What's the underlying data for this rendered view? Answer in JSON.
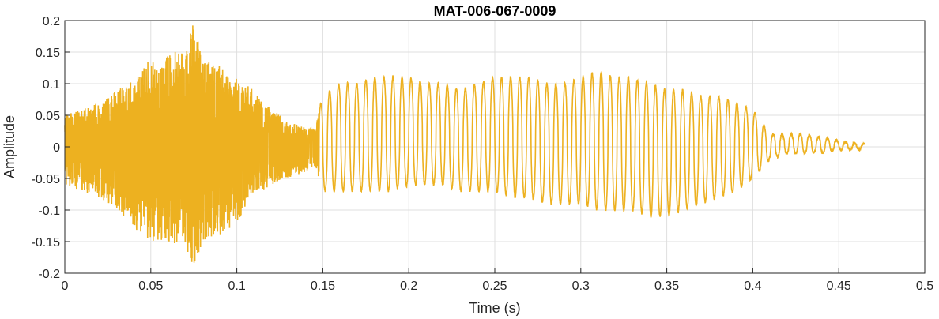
{
  "chart_data": {
    "type": "line",
    "title": "MAT-006-067-0009",
    "xlabel": "Time (s)",
    "ylabel": "Amplitude",
    "xlim": [
      0,
      0.5
    ],
    "ylim": [
      -0.2,
      0.2
    ],
    "grid": true,
    "line_color": "#edb120",
    "x_ticks": [
      "0",
      "0.05",
      "0.1",
      "0.15",
      "0.2",
      "0.25",
      "0.3",
      "0.35",
      "0.4",
      "0.45",
      "0.5"
    ],
    "y_ticks": [
      "0.2",
      "0.15",
      "0.1",
      "0.05",
      "0",
      "-0.05",
      "-0.1",
      "-0.15",
      "-0.2"
    ],
    "series": [
      {
        "x": [
          0,
          0.01,
          0.02,
          0.03,
          0.04,
          0.05,
          0.06,
          0.07,
          0.075,
          0.08,
          0.09,
          0.1,
          0.11,
          0.12,
          0.13,
          0.14,
          0.145,
          0.15,
          0.16,
          0.17,
          0.18,
          0.19,
          0.2,
          0.21,
          0.22,
          0.23,
          0.24,
          0.25,
          0.26,
          0.27,
          0.28,
          0.29,
          0.3,
          0.31,
          0.32,
          0.33,
          0.34,
          0.35,
          0.36,
          0.37,
          0.38,
          0.39,
          0.4,
          0.41,
          0.42,
          0.43,
          0.44,
          0.45,
          0.46,
          0.465
        ],
        "y_upper": [
          0.05,
          0.06,
          0.07,
          0.09,
          0.11,
          0.14,
          0.15,
          0.16,
          0.2,
          0.14,
          0.13,
          0.11,
          0.09,
          0.06,
          0.04,
          0.03,
          0.03,
          0.08,
          0.1,
          0.1,
          0.11,
          0.11,
          0.11,
          0.1,
          0.1,
          0.09,
          0.1,
          0.11,
          0.11,
          0.11,
          0.1,
          0.1,
          0.11,
          0.12,
          0.11,
          0.11,
          0.1,
          0.09,
          0.09,
          0.08,
          0.08,
          0.07,
          0.06,
          0.02,
          0.02,
          0.02,
          0.015,
          0.01,
          0.005,
          0.005
        ],
        "y_lower": [
          -0.06,
          -0.07,
          -0.08,
          -0.1,
          -0.13,
          -0.15,
          -0.15,
          -0.16,
          -0.19,
          -0.15,
          -0.14,
          -0.12,
          -0.08,
          -0.06,
          -0.05,
          -0.04,
          -0.03,
          -0.07,
          -0.07,
          -0.07,
          -0.07,
          -0.07,
          -0.06,
          -0.06,
          -0.06,
          -0.07,
          -0.07,
          -0.07,
          -0.08,
          -0.08,
          -0.09,
          -0.09,
          -0.09,
          -0.1,
          -0.1,
          -0.1,
          -0.11,
          -0.11,
          -0.1,
          -0.09,
          -0.08,
          -0.07,
          -0.05,
          -0.02,
          -0.01,
          -0.01,
          -0.01,
          -0.005,
          -0.005,
          -0.003
        ]
      }
    ]
  }
}
